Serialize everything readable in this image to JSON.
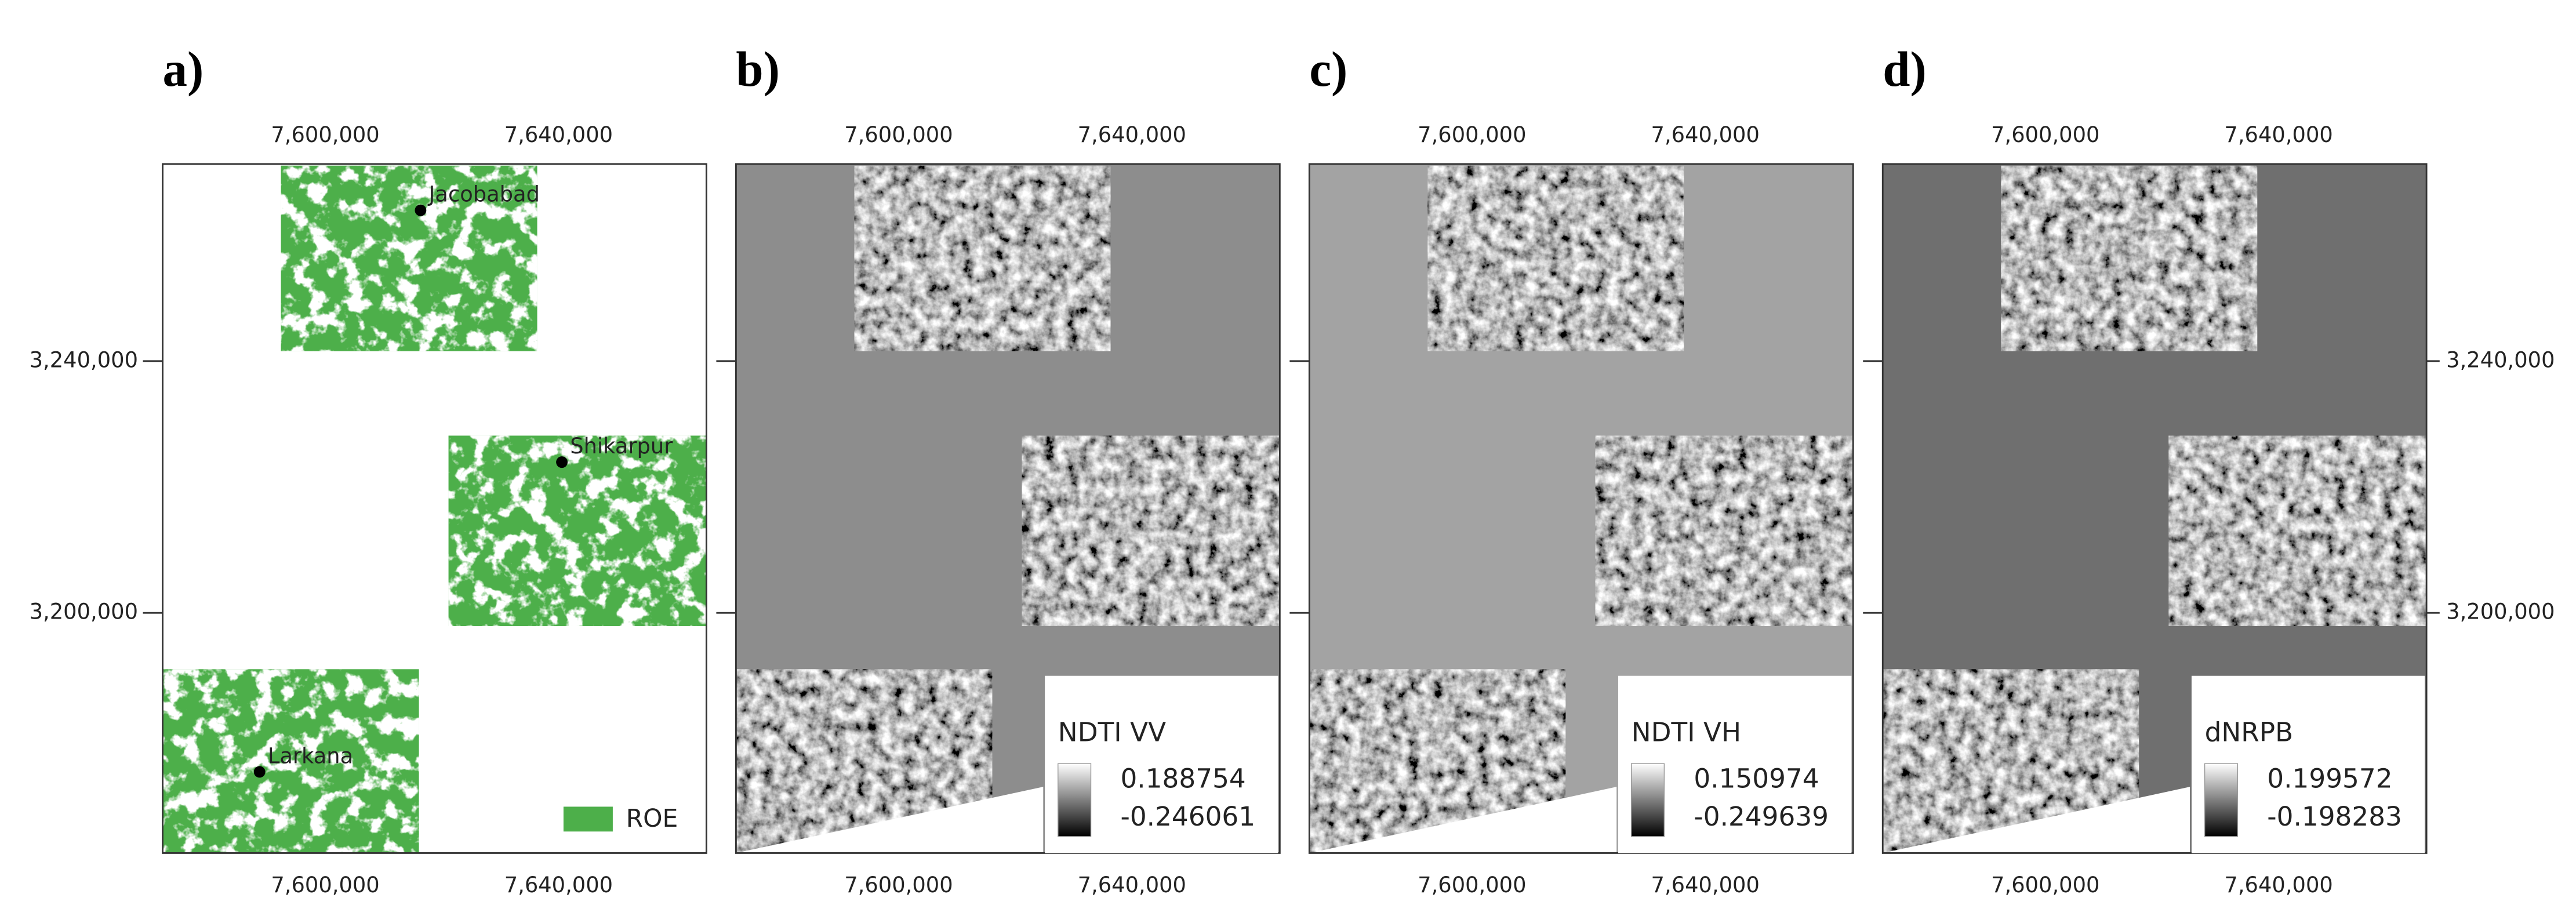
{
  "panels": [
    {
      "label": "a)",
      "top_ticks": [
        "7,600,000",
        "7,640,000"
      ],
      "bottom_ticks": [
        "7,600,000",
        "7,640,000"
      ],
      "left_ticks": [
        "3,240,000",
        "3,200,000"
      ],
      "places": [
        "Jacobabad",
        "Shikarpur",
        "Larkana"
      ],
      "legend": {
        "item": "ROE"
      }
    },
    {
      "label": "b)",
      "top_ticks": [
        "7,600,000",
        "7,640,000"
      ],
      "bottom_ticks": [
        "7,600,000",
        "7,640,000"
      ],
      "legend": {
        "title": "NDTI VV",
        "max": "0.188754",
        "min": "-0.246061"
      }
    },
    {
      "label": "c)",
      "top_ticks": [
        "7,600,000",
        "7,640,000"
      ],
      "bottom_ticks": [
        "7,600,000",
        "7,640,000"
      ],
      "legend": {
        "title": "NDTI VH",
        "max": "0.150974",
        "min": "-0.249639"
      }
    },
    {
      "label": "d)",
      "top_ticks": [
        "7,600,000",
        "7,640,000"
      ],
      "bottom_ticks": [
        "7,600,000",
        "7,640,000"
      ],
      "right_ticks": [
        "3,240,000",
        "3,200,000"
      ],
      "legend": {
        "title": "dNRPB",
        "max": "0.199572",
        "min": "-0.198283"
      }
    }
  ]
}
